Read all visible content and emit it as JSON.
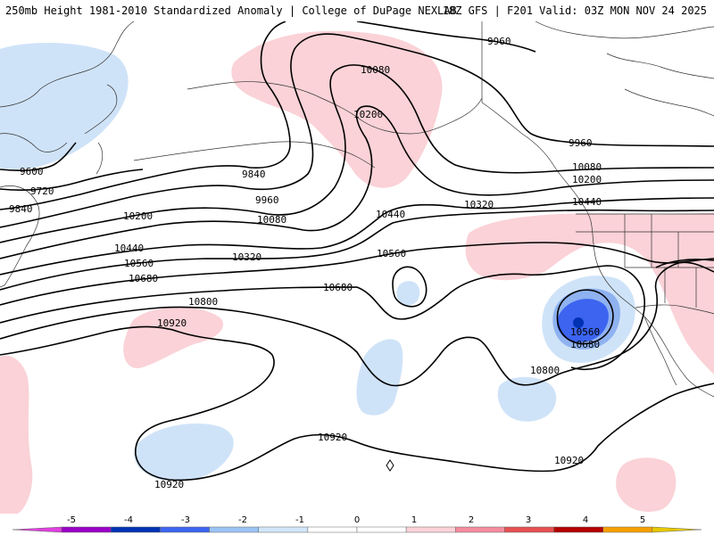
{
  "header": {
    "left_title": "250mb Height 1981-2010 Standardized Anomaly | College of DuPage NEXLAB",
    "right_title": "18Z GFS | F201 Valid: 03Z MON NOV 24 2025"
  },
  "contour_labels": [
    {
      "id": "h9960-ne",
      "text": "9960"
    },
    {
      "id": "h10080-ak",
      "text": "10080"
    },
    {
      "id": "h10200-ak",
      "text": "10200"
    },
    {
      "id": "h9960-e",
      "text": "9960"
    },
    {
      "id": "h10080-e",
      "text": "10080"
    },
    {
      "id": "h10200-e",
      "text": "10200"
    },
    {
      "id": "h10440-e",
      "text": "10440"
    },
    {
      "id": "h9600-w",
      "text": "9600"
    },
    {
      "id": "h9720-w",
      "text": "9720"
    },
    {
      "id": "h9840-w",
      "text": "9840"
    },
    {
      "id": "h9840-c",
      "text": "9840"
    },
    {
      "id": "h9960-c",
      "text": "9960"
    },
    {
      "id": "h10080-c",
      "text": "10080"
    },
    {
      "id": "h10200-w",
      "text": "10200"
    },
    {
      "id": "h10320-c",
      "text": "10320"
    },
    {
      "id": "h10320-e",
      "text": "10320"
    },
    {
      "id": "h10440-c",
      "text": "10440"
    },
    {
      "id": "h10440-w",
      "text": "10440"
    },
    {
      "id": "h10560-w",
      "text": "10560"
    },
    {
      "id": "h10560-c",
      "text": "10560"
    },
    {
      "id": "h10680-w",
      "text": "10680"
    },
    {
      "id": "h10680-c",
      "text": "10680"
    },
    {
      "id": "h10800-w",
      "text": "10800"
    },
    {
      "id": "h10920-w",
      "text": "10920"
    },
    {
      "id": "h10560-low",
      "text": "10560"
    },
    {
      "id": "h10680-low",
      "text": "10680"
    },
    {
      "id": "h10800-low",
      "text": "10800"
    },
    {
      "id": "h10920-s",
      "text": "10920"
    },
    {
      "id": "h10920-sw",
      "text": "10920"
    },
    {
      "id": "h10920-se",
      "text": "10920"
    }
  ],
  "legend": {
    "ticks": [
      "-5",
      "-4",
      "-3",
      "-2",
      "-1",
      "0",
      "1",
      "2",
      "3",
      "4",
      "5"
    ],
    "colors": [
      "#e040e0",
      "#9a00c8",
      "#0032b4",
      "#3c64f0",
      "#9bc4f5",
      "#d2e6fa",
      "#ffffff",
      "#ffffff",
      "#fad2d7",
      "#f58ca0",
      "#e65050",
      "#b40000",
      "#f5a000",
      "#e6c800"
    ]
  },
  "anomaly_colors": {
    "positive_light": "#fad2d7",
    "negative_light": "#cfe3f8",
    "negative_medium": "#8fb2f0",
    "negative_strong": "#3c64f0",
    "negative_core": "#0032b4"
  }
}
